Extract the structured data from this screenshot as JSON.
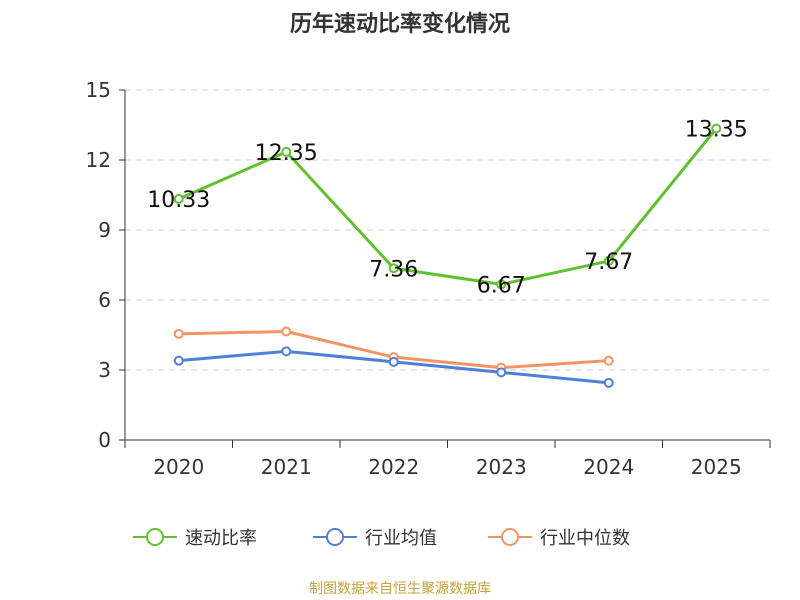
{
  "title": "历年速动比率变化情况",
  "footer": "制图数据来自恒生聚源数据库",
  "chart_data": {
    "type": "line",
    "categories": [
      "2020",
      "2021",
      "2022",
      "2023",
      "2024",
      "2025"
    ],
    "ylim": [
      0,
      15
    ],
    "yticks": [
      0,
      3,
      6,
      9,
      12,
      15
    ],
    "grid": true,
    "legend_position": "bottom",
    "series": [
      {
        "name": "速动比率",
        "color": "#5fc12f",
        "values": [
          10.33,
          12.35,
          7.36,
          6.67,
          7.67,
          13.35
        ],
        "labels": [
          "10.33",
          "12.35",
          "7.36",
          "6.67",
          "7.67",
          "13.35"
        ]
      },
      {
        "name": "行业均值",
        "color": "#4f7fd8",
        "values": [
          3.4,
          3.8,
          3.35,
          2.9,
          2.45,
          null
        ]
      },
      {
        "name": "行业中位数",
        "color": "#f39563",
        "values": [
          4.55,
          4.65,
          3.55,
          3.1,
          3.4,
          null
        ]
      }
    ]
  }
}
